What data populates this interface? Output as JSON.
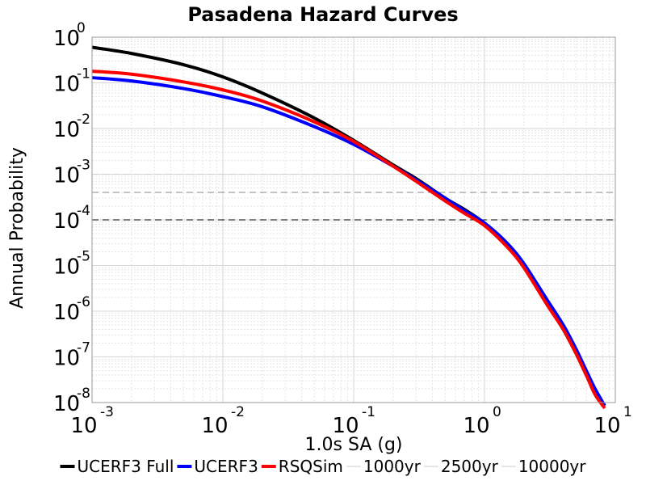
{
  "chart_data": {
    "type": "line",
    "title": "Pasadena Hazard Curves",
    "xlabel": "1.0s SA (g)",
    "ylabel": "Annual Probability",
    "x_scale": "log",
    "y_scale": "log",
    "xlim": [
      0.001,
      10
    ],
    "ylim": [
      1e-08,
      1
    ],
    "x_ticks": [
      {
        "base": "10",
        "exp": "-3",
        "value": 0.001
      },
      {
        "base": "10",
        "exp": "-2",
        "value": 0.01
      },
      {
        "base": "10",
        "exp": "-1",
        "value": 0.1
      },
      {
        "base": "10",
        "exp": "0",
        "value": 1
      },
      {
        "base": "10",
        "exp": "1",
        "value": 10
      }
    ],
    "y_ticks": [
      {
        "base": "10",
        "exp": "0",
        "value": 1
      },
      {
        "base": "10",
        "exp": "-1",
        "value": 0.1
      },
      {
        "base": "10",
        "exp": "-2",
        "value": 0.01
      },
      {
        "base": "10",
        "exp": "-3",
        "value": 0.001
      },
      {
        "base": "10",
        "exp": "-4",
        "value": 0.0001
      },
      {
        "base": "10",
        "exp": "-5",
        "value": 1e-05
      },
      {
        "base": "10",
        "exp": "-6",
        "value": 1e-06
      },
      {
        "base": "10",
        "exp": "-7",
        "value": 1e-07
      },
      {
        "base": "10",
        "exp": "-8",
        "value": 1e-08
      }
    ],
    "grid": true,
    "legend_position": "bottom",
    "series": [
      {
        "name": "UCERF3 Full",
        "color": "#000000",
        "style": "solid",
        "x": [
          0.001,
          0.002,
          0.005,
          0.01,
          0.02,
          0.05,
          0.1,
          0.2,
          0.3,
          0.5,
          0.7,
          1.0,
          1.5,
          2.0,
          3.0,
          4.0,
          5.0,
          6.0,
          7.0,
          8.3
        ],
        "y": [
          0.6,
          0.44,
          0.25,
          0.135,
          0.06,
          0.017,
          0.0055,
          0.0016,
          0.0008,
          0.0003,
          0.00017,
          8.5e-05,
          3e-05,
          1e-05,
          1.5e-06,
          4e-07,
          1.2e-07,
          4e-08,
          1.7e-08,
          8.5e-09
        ]
      },
      {
        "name": "UCERF3",
        "color": "#0000ff",
        "style": "solid",
        "x": [
          0.001,
          0.002,
          0.005,
          0.01,
          0.02,
          0.05,
          0.1,
          0.2,
          0.3,
          0.5,
          0.7,
          1.0,
          1.5,
          2.0,
          3.0,
          4.0,
          5.0,
          6.0,
          7.0,
          8.3
        ],
        "y": [
          0.13,
          0.11,
          0.075,
          0.05,
          0.03,
          0.011,
          0.0045,
          0.0015,
          0.00075,
          0.0003,
          0.00016,
          8.5e-05,
          3e-05,
          1.1e-05,
          1.8e-06,
          5e-07,
          1.5e-07,
          5e-08,
          2e-08,
          8.5e-09
        ]
      },
      {
        "name": "RSQSim",
        "color": "#ff0000",
        "style": "solid",
        "x": [
          0.001,
          0.002,
          0.005,
          0.01,
          0.02,
          0.05,
          0.1,
          0.2,
          0.3,
          0.5,
          0.7,
          1.0,
          1.5,
          2.0,
          3.0,
          4.0,
          5.0,
          6.0,
          7.0,
          8.3
        ],
        "y": [
          0.18,
          0.155,
          0.105,
          0.07,
          0.04,
          0.014,
          0.0052,
          0.0015,
          0.0007,
          0.00026,
          0.00014,
          7.5e-05,
          2.5e-05,
          9e-06,
          1.4e-06,
          4e-07,
          1.2e-07,
          4e-08,
          1.5e-08,
          7.5e-09
        ]
      },
      {
        "name": "1000yr",
        "color": "#cccccc",
        "style": "dashed",
        "x": [
          0.001,
          10
        ],
        "y": [
          0.001,
          0.001
        ]
      },
      {
        "name": "2500yr",
        "color": "#888888",
        "style": "dashed",
        "x": [
          0.001,
          10
        ],
        "y": [
          0.0004,
          0.0004
        ]
      },
      {
        "name": "10000yr",
        "color": "#000000",
        "style": "dashed",
        "x": [
          0.001,
          10
        ],
        "y": [
          0.0001,
          0.0001
        ]
      }
    ]
  }
}
